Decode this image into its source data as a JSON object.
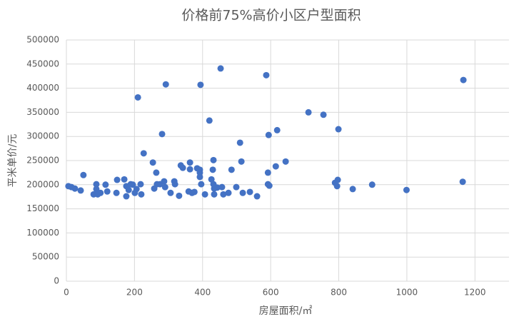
{
  "chart_data": {
    "type": "scatter",
    "title": "价格前75%高价小区户型面积",
    "x_label": "房屋面积/㎡",
    "y_label": "平米单价/元",
    "color": "#4472c4",
    "grid": true,
    "xlim": [
      0,
      1300
    ],
    "xticks": [
      0,
      200,
      400,
      600,
      800,
      1000,
      1200
    ],
    "ylim": [
      0,
      500000
    ],
    "yticks": [
      0,
      50000,
      100000,
      150000,
      200000,
      250000,
      300000,
      350000,
      400000,
      450000,
      500000
    ],
    "x": [
      6,
      15,
      25,
      42,
      50,
      80,
      88,
      88,
      92,
      100,
      115,
      120,
      147,
      149,
      170,
      176,
      176,
      183,
      189,
      195,
      201,
      210,
      206,
      218,
      220,
      227,
      254,
      258,
      264,
      266,
      275,
      281,
      287,
      290,
      292,
      306,
      317,
      319,
      331,
      336,
      342,
      359,
      363,
      363,
      369,
      376,
      384,
      392,
      392,
      396,
      392,
      394,
      407,
      420,
      426,
      430,
      432,
      432,
      434,
      434,
      443,
      453,
      457,
      461,
      476,
      485,
      499,
      510,
      514,
      518,
      539,
      560,
      587,
      592,
      592,
      594,
      596,
      615,
      619,
      644,
      711,
      755,
      789,
      797,
      799,
      795,
      841,
      898,
      999,
      1166,
      1164
    ],
    "values": [
      197000,
      195000,
      192000,
      188000,
      220000,
      180000,
      201000,
      191000,
      180000,
      183000,
      200000,
      186000,
      183000,
      210000,
      211000,
      197000,
      176000,
      189000,
      201000,
      200000,
      183000,
      381000,
      191000,
      201000,
      180000,
      265000,
      246000,
      192000,
      225000,
      201000,
      201000,
      305000,
      207000,
      195000,
      408000,
      183000,
      207000,
      201000,
      177000,
      240000,
      235000,
      186000,
      246000,
      232000,
      183000,
      185000,
      234000,
      231000,
      216000,
      201000,
      225000,
      407000,
      180000,
      333000,
      211000,
      231000,
      251000,
      201000,
      192000,
      180000,
      194000,
      441000,
      195000,
      180000,
      183000,
      231000,
      195000,
      287000,
      248000,
      183000,
      185000,
      176000,
      427000,
      225000,
      201000,
      303000,
      198000,
      238000,
      313000,
      248000,
      350000,
      345000,
      204000,
      210000,
      315000,
      197000,
      191000,
      200000,
      189000,
      417000,
      206000
    ]
  }
}
